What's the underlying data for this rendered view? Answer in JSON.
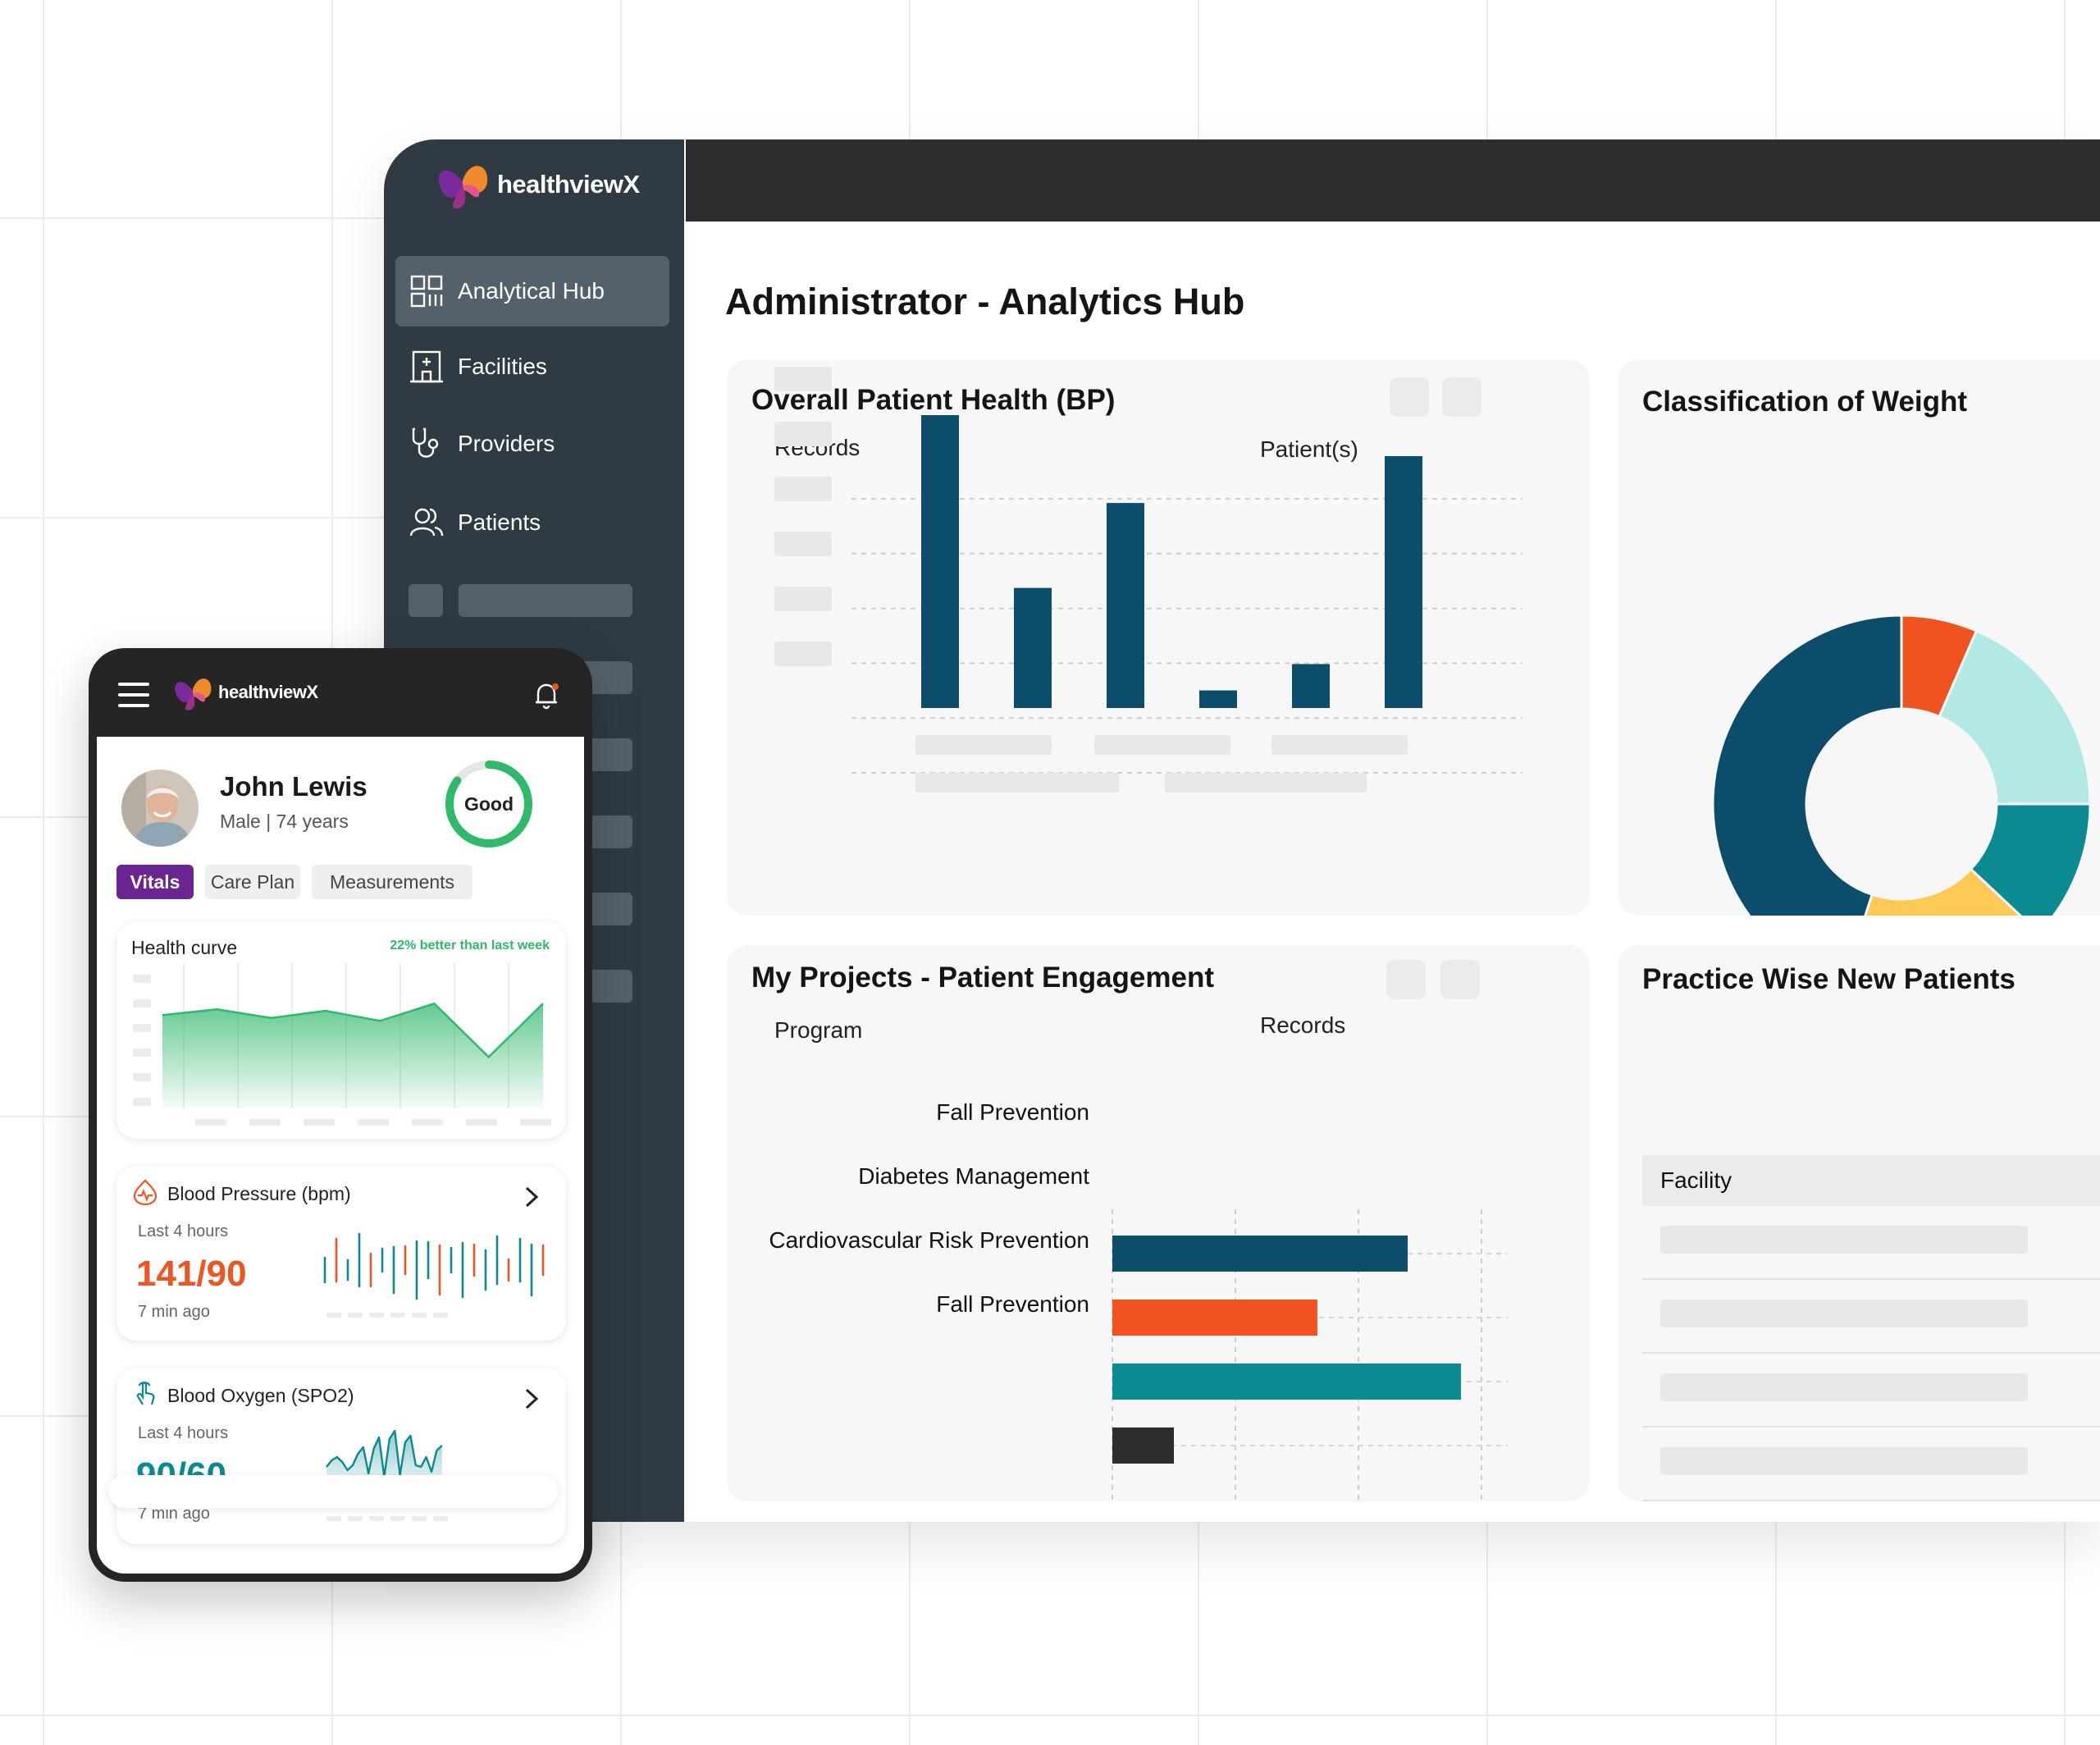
{
  "app": {
    "brand": "healthviewX"
  },
  "colors": {
    "navy": "#0c4d6c",
    "orange": "#f0531f",
    "teal": "#0b8a92",
    "mint": "#b3e9e4",
    "yellow": "#fec955",
    "dark": "#2d2d2d",
    "purple": "#6b2591",
    "green": "#30b86b"
  },
  "sidebar": {
    "items": [
      {
        "label": "Analytical Hub",
        "icon": "grid-icon",
        "active": true
      },
      {
        "label": "Facilities",
        "icon": "building-icon"
      },
      {
        "label": "Providers",
        "icon": "stethoscope-icon"
      },
      {
        "label": "Patients",
        "icon": "users-icon"
      }
    ]
  },
  "main": {
    "title": "Administrator - Analytics Hub"
  },
  "bp_card": {
    "title": "Overall Patient Health (BP)",
    "left_label": "Records",
    "right_label": "Patient(s)",
    "chart_data": {
      "type": "bar",
      "categories": [
        "",
        "",
        "",
        "",
        "",
        ""
      ],
      "values": [
        100,
        41,
        70,
        6,
        15,
        86
      ],
      "ylim": [
        0,
        100
      ],
      "grid": true
    }
  },
  "weight_card": {
    "title": "Classification of Weight",
    "chart_data": {
      "type": "pie",
      "donut": true,
      "slices": [
        {
          "value": 6.5,
          "color": "#f0531f"
        },
        {
          "value": 18.5,
          "color": "#b3e9e4"
        },
        {
          "value": 12,
          "color": "#0b8a92"
        },
        {
          "value": 18,
          "color": "#fec955"
        },
        {
          "value": 45,
          "color": "#0c4d6c"
        }
      ]
    }
  },
  "projects_card": {
    "title": "My Projects - Patient Engagement",
    "left_label": "Program",
    "right_label": "Records",
    "chart_data": {
      "type": "bar",
      "orientation": "horizontal",
      "categories": [
        "Fall Prevention",
        "Diabetes Management",
        "Cardiovascular Risk Prevention",
        "Fall Prevention"
      ],
      "values": [
        72,
        50,
        85,
        15
      ],
      "colors": [
        "#0c4d6c",
        "#f0531f",
        "#0b8a92",
        "#2d2d2d"
      ],
      "xlim": [
        0,
        100
      ],
      "grid": true
    }
  },
  "practice_card": {
    "title": "Practice Wise New Patients",
    "column": "Facility",
    "rows": 4
  },
  "mobile": {
    "brand": "healthviewX",
    "patient": {
      "name": "John Lewis",
      "details": "Male | 74 years",
      "status": "Good",
      "status_progress": 0.85
    },
    "tabs": [
      {
        "label": "Vitals",
        "active": true
      },
      {
        "label": "Care Plan"
      },
      {
        "label": "Measurements"
      }
    ],
    "health_curve": {
      "title": "Health curve",
      "note": "22% better than last week",
      "chart_data": {
        "type": "area",
        "values": [
          64,
          68,
          62,
          67,
          60,
          72,
          35,
          72
        ],
        "ylim": [
          0,
          100
        ]
      }
    },
    "blood_pressure": {
      "title": "Blood Pressure (bpm)",
      "period": "Last 4 hours",
      "value": "141/90",
      "ago": "7 min ago"
    },
    "blood_oxygen": {
      "title": "Blood Oxygen (SPO2)",
      "period": "Last 4 hours",
      "value": "90/60",
      "ago": "7 min ago"
    }
  }
}
